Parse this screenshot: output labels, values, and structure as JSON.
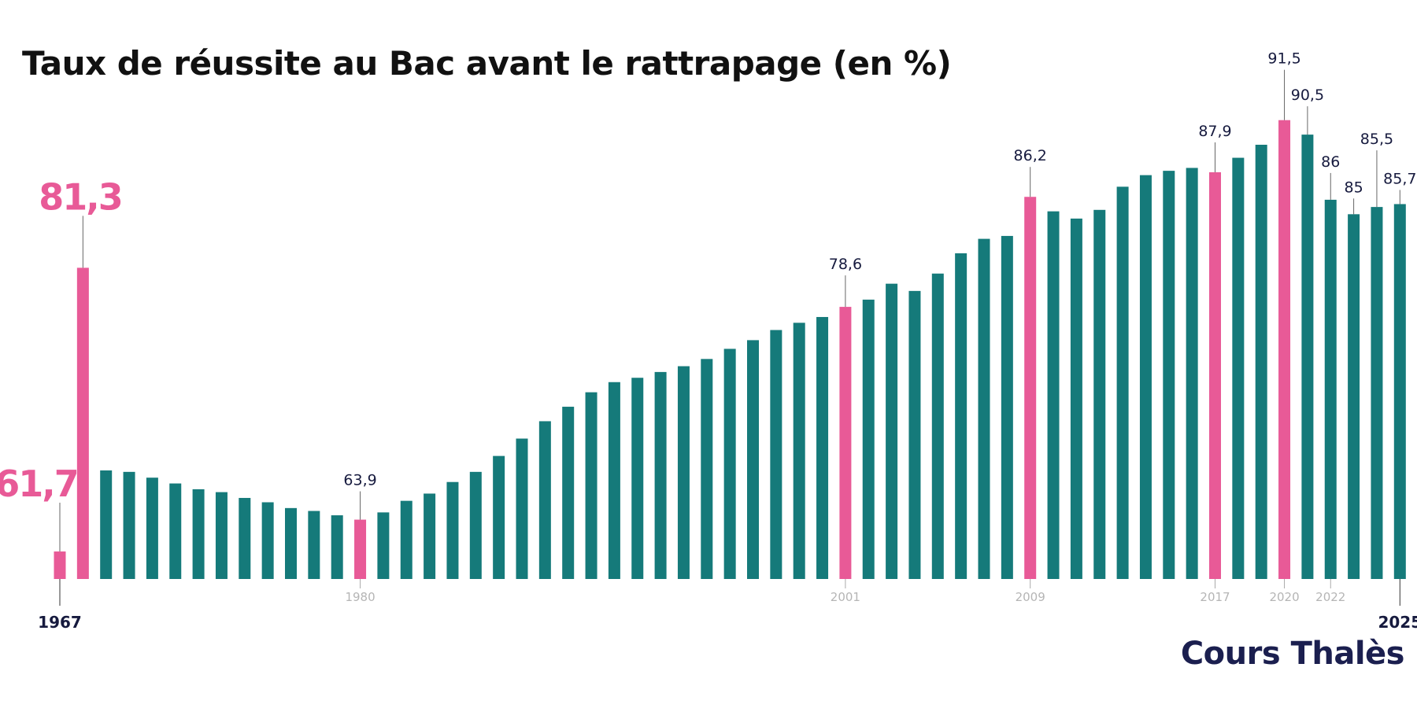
{
  "chart_data": {
    "type": "bar",
    "title": "Taux de réussite au Bac avant le rattrapage (en %)",
    "xlabel": "",
    "ylabel": "",
    "ylim": [
      59.8,
      93
    ],
    "grid": false,
    "colors": {
      "default": "#157a7a",
      "highlight": "#e85a97",
      "label_dark": "#161a3e",
      "tick_grey": "#b5b5b5"
    },
    "categories": [
      1967,
      1968,
      1969,
      1970,
      1971,
      1972,
      1973,
      1974,
      1975,
      1976,
      1977,
      1978,
      1979,
      1980,
      1981,
      1982,
      1983,
      1984,
      1985,
      1986,
      1987,
      1988,
      1989,
      1990,
      1991,
      1992,
      1993,
      1994,
      1995,
      1996,
      1997,
      1998,
      1999,
      2000,
      2001,
      2002,
      2003,
      2004,
      2005,
      2006,
      2007,
      2008,
      2009,
      2010,
      2011,
      2012,
      2013,
      2014,
      2015,
      2016,
      2017,
      2018,
      2019,
      2020,
      2021,
      2022,
      2023,
      2024,
      2025
    ],
    "values": [
      61.7,
      81.3,
      67.3,
      67.2,
      66.8,
      66.4,
      66.0,
      65.8,
      65.4,
      65.1,
      64.7,
      64.5,
      64.2,
      63.9,
      64.4,
      65.2,
      65.7,
      66.5,
      67.2,
      68.3,
      69.5,
      70.7,
      71.7,
      72.7,
      73.4,
      73.7,
      74.1,
      74.5,
      75.0,
      75.7,
      76.3,
      77.0,
      77.5,
      77.9,
      78.6,
      79.1,
      80.2,
      79.7,
      80.9,
      82.3,
      83.3,
      83.5,
      86.2,
      85.2,
      84.7,
      85.3,
      86.9,
      87.7,
      88.0,
      88.2,
      87.9,
      88.9,
      89.8,
      91.5,
      90.5,
      86.0,
      85.0,
      85.5,
      85.7
    ],
    "highlighted_years": [
      1967,
      1968,
      1980,
      2001,
      2009,
      2017,
      2020
    ],
    "data_labels": [
      {
        "year": 1967,
        "text": "61,7",
        "style": "big"
      },
      {
        "year": 1968,
        "text": "81,3",
        "style": "big"
      },
      {
        "year": 1980,
        "text": "63,9"
      },
      {
        "year": 2001,
        "text": "78,6"
      },
      {
        "year": 2009,
        "text": "86,2"
      },
      {
        "year": 2017,
        "text": "87,9"
      },
      {
        "year": 2020,
        "text": "91,5"
      },
      {
        "year": 2021,
        "text": "90,5"
      },
      {
        "year": 2022,
        "text": "86"
      },
      {
        "year": 2023,
        "text": "85"
      },
      {
        "year": 2024,
        "text": "85,5"
      },
      {
        "year": 2025,
        "text": "85,7"
      }
    ],
    "tick_labels": [
      {
        "year": 1967,
        "text": "1967",
        "style": "bold"
      },
      {
        "year": 1980,
        "text": "1980"
      },
      {
        "year": 2001,
        "text": "2001"
      },
      {
        "year": 2009,
        "text": "2009"
      },
      {
        "year": 2017,
        "text": "2017"
      },
      {
        "year": 2020,
        "text": "2020"
      },
      {
        "year": 2022,
        "text": "2022"
      },
      {
        "year": 2025,
        "text": "2025",
        "style": "bold"
      }
    ]
  },
  "brand": {
    "logo_text": "Cours Thalès"
  }
}
